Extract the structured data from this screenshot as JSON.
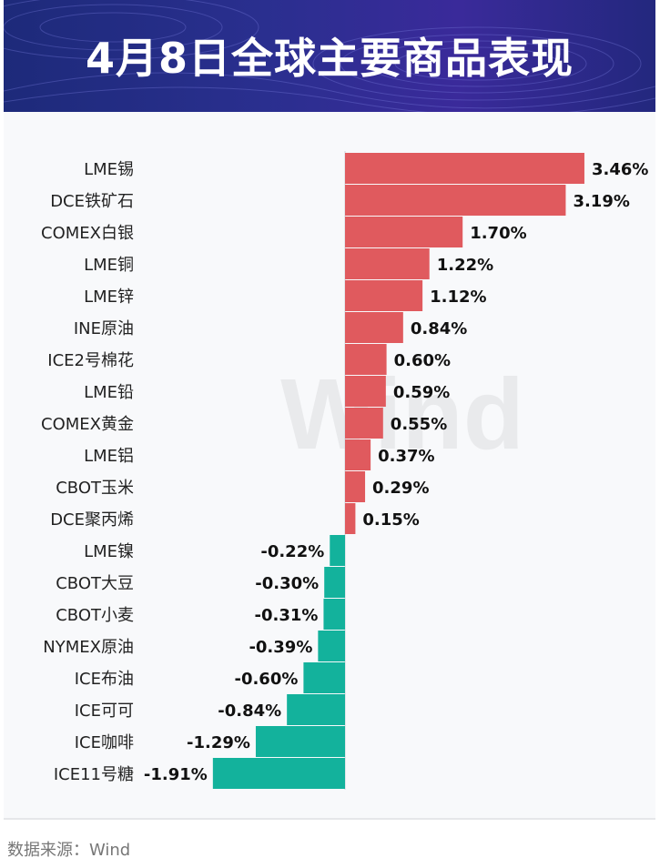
{
  "header": {
    "title": "4月8日全球主要商品表现"
  },
  "footer": {
    "source": "数据来源：Wind"
  },
  "watermark": "Wind",
  "colors": {
    "positive": "#e05a5e",
    "negative": "#13b29c",
    "header_bg": "#24297f"
  },
  "chart_data": {
    "type": "bar",
    "orientation": "horizontal",
    "title": "4月8日全球主要商品表现",
    "unit": "%",
    "categories": [
      "LME锡",
      "DCE铁矿石",
      "COMEX白银",
      "LME铜",
      "LME锌",
      "INE原油",
      "ICE2号棉花",
      "LME铅",
      "COMEX黄金",
      "LME铝",
      "CBOT玉米",
      "DCE聚丙烯",
      "LME镍",
      "CBOT大豆",
      "CBOT小麦",
      "NYMEX原油",
      "ICE布油",
      "ICE可可",
      "ICE咖啡",
      "ICE11号糖"
    ],
    "values": [
      3.46,
      3.19,
      1.7,
      1.22,
      1.12,
      0.84,
      0.6,
      0.59,
      0.55,
      0.37,
      0.29,
      0.15,
      -0.22,
      -0.3,
      -0.31,
      -0.39,
      -0.6,
      -0.84,
      -1.29,
      -1.91
    ],
    "labels": [
      "3.46%",
      "3.19%",
      "1.70%",
      "1.22%",
      "1.12%",
      "0.84%",
      "0.60%",
      "0.59%",
      "0.55%",
      "0.37%",
      "0.29%",
      "0.15%",
      "-0.22%",
      "-0.30%",
      "-0.31%",
      "-0.39%",
      "-0.60%",
      "-0.84%",
      "-1.29%",
      "-1.91%"
    ]
  }
}
